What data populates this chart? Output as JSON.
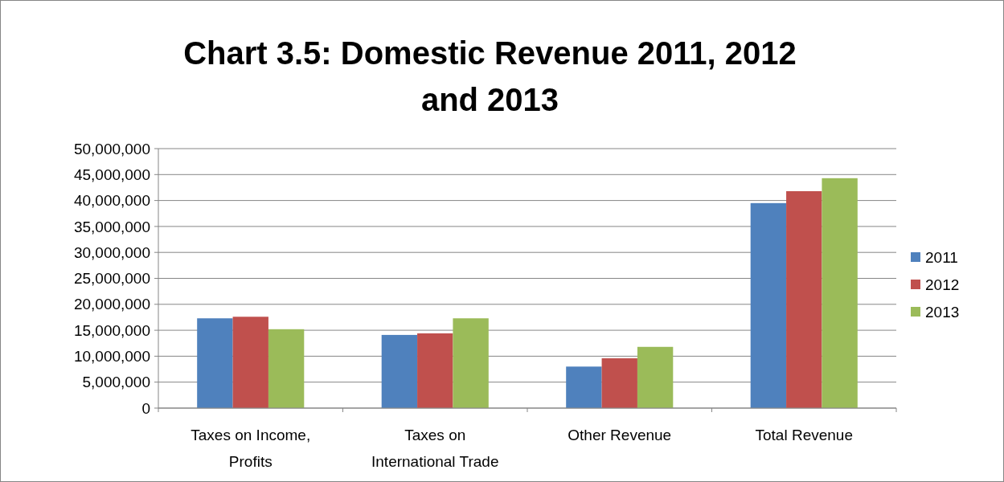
{
  "chart_data": {
    "type": "bar",
    "title": "Chart 3.5: Domestic Revenue 2011, 2012 and 2013",
    "categories": [
      "Taxes on Income, Profits",
      "Taxes on International Trade",
      "Other Revenue",
      "Total Revenue"
    ],
    "series": [
      {
        "name": "2011",
        "color": "#4f81bd",
        "values": [
          17300000,
          14100000,
          8000000,
          39500000
        ]
      },
      {
        "name": "2012",
        "color": "#c0504d",
        "values": [
          17600000,
          14400000,
          9600000,
          41800000
        ]
      },
      {
        "name": "2013",
        "color": "#9bbb59",
        "values": [
          15200000,
          17300000,
          11800000,
          44300000
        ]
      }
    ],
    "ylim": [
      0,
      50000000
    ],
    "yticks": [
      0,
      {
        "value": 5000000,
        "label": "5,000,000"
      },
      {
        "value": 10000000,
        "label": "10,000,000"
      },
      {
        "value": 15000000,
        "label": "15,000,000"
      },
      {
        "value": 20000000,
        "label": "20,000,000"
      },
      {
        "value": 25000000,
        "label": "25,000,000"
      },
      {
        "value": 30000000,
        "label": "30,000,000"
      },
      {
        "value": 35000000,
        "label": "35,000,000"
      },
      {
        "value": 40000000,
        "label": "40,000,000"
      },
      {
        "value": 45000000,
        "label": "45,000,000"
      },
      {
        "value": 50000000,
        "label": "50,000,000"
      }
    ],
    "grid": "y",
    "legend": "right"
  }
}
